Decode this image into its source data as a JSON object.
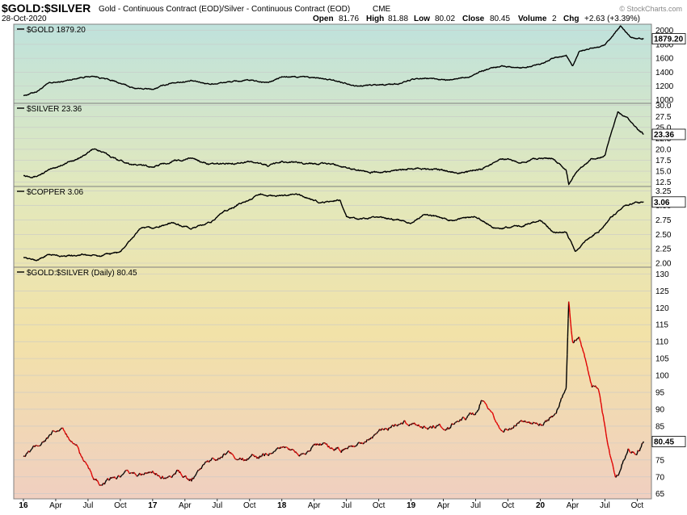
{
  "header": {
    "symbol": "$GOLD:$SILVER",
    "description": "Gold - Continuous Contract (EOD)/Silver - Continuous Contract (EOD)",
    "exchange": "CME",
    "date": "28-Oct-2020",
    "open_label": "Open",
    "open": "81.76",
    "high_label": "High",
    "high": "81.88",
    "low_label": "Low",
    "low": "80.02",
    "close_label": "Close",
    "close": "80.45",
    "volume_label": "Volume",
    "volume": "2",
    "chg_label": "Chg",
    "chg": "+2.63 (+3.39%)",
    "logo": "© StockCharts.com"
  },
  "colors": {
    "price_line": "#000000",
    "down_bar": "#e00000",
    "up_bar": "#000000",
    "panel_border": "#808080",
    "grid": "#c8c8c8"
  },
  "chart_data": [
    {
      "type": "line",
      "title": "$GOLD 1879.20",
      "last_label": "1879.20",
      "ylim": [
        950,
        2090
      ],
      "yticks": [
        1000,
        1200,
        1400,
        1600,
        1800,
        2000
      ],
      "x": [
        2016.0,
        2016.1,
        2016.2,
        2016.3,
        2016.45,
        2016.55,
        2016.7,
        2016.85,
        2017.0,
        2017.15,
        2017.3,
        2017.45,
        2017.6,
        2017.75,
        2017.9,
        2018.0,
        2018.15,
        2018.3,
        2018.45,
        2018.6,
        2018.75,
        2018.9,
        2019.0,
        2019.15,
        2019.3,
        2019.45,
        2019.55,
        2019.7,
        2019.85,
        2020.0,
        2020.1,
        2020.2,
        2020.25,
        2020.3,
        2020.4,
        2020.5,
        2020.58,
        2020.62,
        2020.7,
        2020.8
      ],
      "values": [
        1060,
        1120,
        1240,
        1260,
        1330,
        1340,
        1270,
        1170,
        1150,
        1250,
        1270,
        1230,
        1260,
        1280,
        1250,
        1330,
        1330,
        1310,
        1260,
        1200,
        1220,
        1230,
        1290,
        1310,
        1280,
        1340,
        1420,
        1490,
        1460,
        1520,
        1600,
        1640,
        1490,
        1700,
        1740,
        1780,
        1960,
        2060,
        1900,
        1880
      ],
      "xtick_labels": [
        "16",
        "Apr",
        "Jul",
        "Oct",
        "17",
        "Apr",
        "Jul",
        "Oct",
        "18",
        "Apr",
        "Jul",
        "Oct",
        "19",
        "Apr",
        "Jul",
        "Oct",
        "20",
        "Apr",
        "Jul",
        "Oct"
      ]
    },
    {
      "type": "line",
      "title": "$SILVER 23.36",
      "last_label": "23.36",
      "ylim": [
        11.5,
        30.5
      ],
      "yticks": [
        12.5,
        15.0,
        17.5,
        20.0,
        22.5,
        25.0,
        27.5,
        30.0
      ],
      "x": [
        2016.0,
        2016.1,
        2016.2,
        2016.3,
        2016.45,
        2016.55,
        2016.7,
        2016.85,
        2017.0,
        2017.15,
        2017.3,
        2017.45,
        2017.6,
        2017.75,
        2017.9,
        2018.0,
        2018.2,
        2018.4,
        2018.6,
        2018.75,
        2019.0,
        2019.2,
        2019.4,
        2019.55,
        2019.7,
        2019.85,
        2020.0,
        2020.1,
        2020.2,
        2020.22,
        2020.3,
        2020.4,
        2020.5,
        2020.55,
        2020.6,
        2020.68,
        2020.75,
        2020.8
      ],
      "values": [
        14.0,
        13.9,
        15.2,
        16.5,
        18.2,
        20.2,
        18.0,
        16.5,
        16.0,
        17.2,
        18.0,
        16.5,
        16.8,
        17.2,
        16.2,
        17.2,
        16.8,
        16.6,
        15.2,
        14.6,
        15.6,
        15.3,
        14.6,
        15.6,
        17.8,
        17.2,
        18.0,
        17.8,
        15.2,
        12.0,
        15.5,
        17.8,
        18.5,
        24.0,
        28.5,
        27.0,
        24.5,
        23.4
      ]
    },
    {
      "type": "line",
      "title": "$COPPER 3.06",
      "last_label": "3.06",
      "ylim": [
        1.93,
        3.33
      ],
      "yticks": [
        2.0,
        2.25,
        2.5,
        2.75,
        3.0,
        3.25
      ],
      "x": [
        2016.0,
        2016.1,
        2016.2,
        2016.3,
        2016.45,
        2016.6,
        2016.75,
        2016.85,
        2016.9,
        2017.0,
        2017.15,
        2017.3,
        2017.45,
        2017.55,
        2017.7,
        2017.85,
        2017.95,
        2018.1,
        2018.3,
        2018.45,
        2018.5,
        2018.6,
        2018.75,
        2018.9,
        2019.0,
        2019.1,
        2019.3,
        2019.5,
        2019.65,
        2019.85,
        2020.0,
        2020.1,
        2020.2,
        2020.27,
        2020.35,
        2020.45,
        2020.55,
        2020.65,
        2020.75,
        2020.8
      ],
      "values": [
        2.1,
        2.05,
        2.15,
        2.12,
        2.15,
        2.12,
        2.2,
        2.45,
        2.6,
        2.6,
        2.7,
        2.6,
        2.7,
        2.9,
        3.05,
        3.2,
        3.15,
        3.2,
        3.05,
        3.1,
        2.8,
        2.75,
        2.8,
        2.75,
        2.7,
        2.85,
        2.75,
        2.8,
        2.6,
        2.65,
        2.75,
        2.55,
        2.55,
        2.2,
        2.4,
        2.55,
        2.8,
        3.0,
        3.05,
        3.06
      ]
    },
    {
      "type": "line",
      "title": "$GOLD:$SILVER (Daily) 80.45",
      "last_label": "80.45",
      "ylim": [
        63.5,
        132
      ],
      "yticks": [
        65,
        70,
        75,
        80,
        85,
        90,
        95,
        100,
        105,
        110,
        115,
        120,
        125,
        130
      ],
      "x": [
        2016.0,
        2016.1,
        2016.2,
        2016.3,
        2016.4,
        2016.5,
        2016.6,
        2016.7,
        2016.85,
        2017.0,
        2017.1,
        2017.2,
        2017.3,
        2017.4,
        2017.5,
        2017.6,
        2017.7,
        2017.85,
        2018.0,
        2018.15,
        2018.3,
        2018.45,
        2018.55,
        2018.7,
        2018.85,
        2019.0,
        2019.1,
        2019.25,
        2019.4,
        2019.5,
        2019.55,
        2019.62,
        2019.7,
        2019.85,
        2020.0,
        2020.1,
        2020.2,
        2020.22,
        2020.25,
        2020.3,
        2020.35,
        2020.4,
        2020.45,
        2020.5,
        2020.55,
        2020.58,
        2020.62,
        2020.68,
        2020.75,
        2020.8
      ],
      "values": [
        76,
        79,
        82,
        84,
        80,
        72,
        67,
        70,
        71,
        71,
        70,
        72,
        69,
        74,
        76,
        77,
        75,
        76,
        79,
        77,
        80,
        78,
        79,
        82,
        85,
        86,
        85,
        84,
        87,
        89,
        93,
        88,
        83,
        86,
        85,
        88,
        96,
        122,
        110,
        112,
        104,
        96,
        97,
        85,
        75,
        70,
        72,
        78,
        77,
        80.45
      ]
    }
  ]
}
